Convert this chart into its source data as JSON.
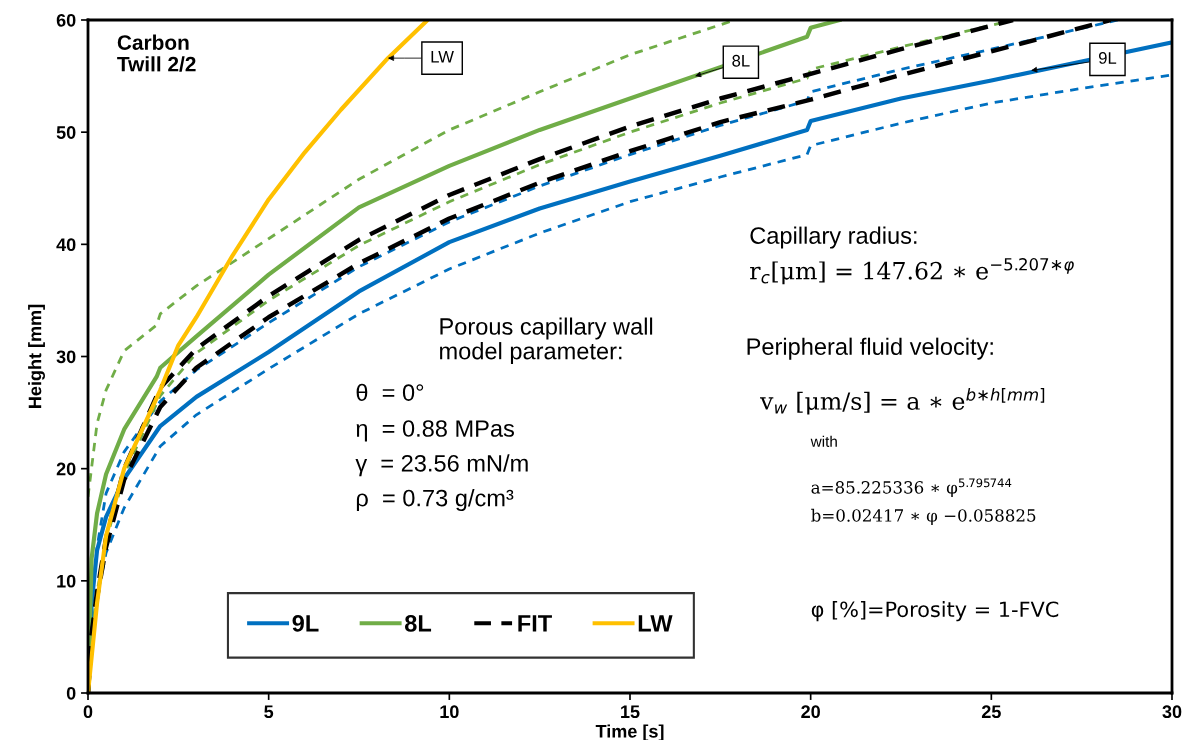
{
  "chart_data": {
    "type": "line",
    "xlabel": "Time [s]",
    "ylabel": "Height [mm]",
    "xlim": [
      0,
      30
    ],
    "xticks": [
      0,
      5,
      10,
      15,
      20,
      25,
      30
    ],
    "ylim": [
      0,
      60
    ],
    "yticks": [
      0,
      10,
      20,
      30,
      40,
      50,
      60
    ],
    "grid": false,
    "legend": "bottom",
    "marker": "none",
    "series": [
      {
        "color": "#0070c0",
        "line_style": "dashed",
        "x": [
          0,
          0.1,
          0.25,
          0.5,
          1,
          2,
          3,
          5,
          7.5,
          10,
          12.5,
          15,
          17.5,
          19.9,
          20,
          22.5,
          25,
          27.5,
          30
        ],
        "values": [
          0,
          5,
          8.5,
          12.5,
          16.5,
          22,
          24.8,
          28.9,
          33.8,
          37.8,
          41,
          43.8,
          46,
          48,
          48.8,
          50.8,
          52.6,
          53.9,
          55.1
        ]
      },
      {
        "color": "#0070c0",
        "line_style": "dashed",
        "x": [
          0,
          0.1,
          0.25,
          0.5,
          1,
          2,
          3,
          5,
          7.5,
          10,
          12.5,
          15,
          17.5,
          19.9,
          20,
          22.5,
          25,
          28.5
        ],
        "values": [
          0,
          8,
          13,
          17.8,
          21.5,
          26,
          28.8,
          33,
          38,
          42,
          45.2,
          48,
          50.6,
          52.8,
          53.6,
          55.6,
          57.4,
          60
        ]
      },
      {
        "color": "#70ad47",
        "line_style": "dashed",
        "x": [
          0,
          0.1,
          0.25,
          0.5,
          1,
          2,
          3,
          5,
          7.5,
          10,
          12.5,
          15,
          17.5,
          19.9,
          20,
          22.5,
          25.6
        ],
        "values": [
          0,
          5.2,
          9,
          13.5,
          19.5,
          26.5,
          30.3,
          35,
          39.9,
          43.8,
          47.1,
          50,
          52.6,
          54.8,
          55.6,
          57.6,
          60
        ]
      },
      {
        "color": "#70ad47",
        "line_style": "dashed",
        "x": [
          0,
          0.25,
          0.5,
          1,
          1.9,
          2,
          3,
          5,
          7.5,
          10,
          12.5,
          15,
          17.9
        ],
        "values": [
          17.5,
          24,
          27,
          30.5,
          32.8,
          33.8,
          36.3,
          40.5,
          45.8,
          50.2,
          53.6,
          56.9,
          60
        ]
      },
      {
        "name": "9L",
        "color": "#0070c0",
        "line_style": "solid",
        "x": [
          0,
          0.1,
          0.25,
          0.5,
          1,
          2,
          3,
          5,
          7.5,
          10,
          12.5,
          15,
          17.5,
          19.9,
          20,
          22.5,
          25,
          27.5,
          30
        ],
        "values": [
          0,
          8,
          12.7,
          15.7,
          19.1,
          23.8,
          26.4,
          30.4,
          35.8,
          40.2,
          43.2,
          45.6,
          47.9,
          50.2,
          51,
          53,
          54.6,
          56.3,
          58
        ]
      },
      {
        "name": "8L",
        "color": "#70ad47",
        "line_style": "solid",
        "x": [
          0,
          0.1,
          0.25,
          0.5,
          1,
          1.9,
          2,
          3,
          5,
          7.5,
          10,
          12.5,
          15,
          17.5,
          19.9,
          20,
          20.8
        ],
        "values": [
          0,
          12,
          16,
          19.5,
          23.5,
          28.2,
          29,
          31.8,
          37.3,
          43.3,
          47,
          50.2,
          53,
          55.8,
          58.5,
          59.3,
          60
        ]
      },
      {
        "name": "FIT",
        "color": "#000000",
        "line_style": "dashed",
        "x": [
          0,
          0.1,
          0.25,
          0.5,
          1,
          2,
          3,
          5,
          7.5,
          10,
          12.5,
          15,
          17.5,
          20,
          22.5,
          25.6
        ],
        "values": [
          0,
          5.3,
          9,
          13.8,
          20,
          27.2,
          30.7,
          35.4,
          40.4,
          44.4,
          47.6,
          50.5,
          53,
          55.2,
          57.4,
          60
        ]
      },
      {
        "color": "#000000",
        "line_style": "dashed",
        "x": [
          0,
          0.1,
          0.25,
          0.5,
          1,
          2,
          3,
          5,
          7.5,
          10,
          12.5,
          15,
          17.5,
          20,
          22.5,
          25,
          28.3
        ],
        "values": [
          0,
          5,
          8.5,
          13,
          19,
          25.5,
          29,
          33.5,
          38.3,
          42.3,
          45.5,
          48.3,
          50.9,
          52.9,
          55.1,
          57.2,
          60
        ]
      },
      {
        "name": "LW",
        "color": "#ffc000",
        "line_style": "solid",
        "x": [
          0,
          0.25,
          0.5,
          1,
          2,
          2.5,
          3,
          4,
          5,
          6,
          7,
          8.3,
          9.4
        ],
        "values": [
          0,
          8,
          14,
          20,
          27,
          31,
          33.5,
          39,
          44,
          48.2,
          52,
          56.6,
          60
        ]
      }
    ],
    "annotations": [
      "Carbon\nTwill 2/2",
      "Porous capillary wall\nmodel parameter:",
      "θ  = 0°",
      "η  = 0.88 MPas",
      "γ  = 23.56 mN/m",
      "ρ  = 0.73 g/cm³",
      "Capillary radius:",
      "r$_{c}$[μm] = 147.62 ∗ e$^{−5.207∗φ}$",
      "Peripheral fluid velocity:",
      "v$_{w}$ [μm/s] = a ∗ e$^{b∗h[mm]}$",
      "with",
      "a=85.225336 ∗ φ$^{5.795744}$",
      "b=0.02417 ∗ φ −0.058825",
      "φ [%]=Porosity = 1-FVC",
      {
        "text": "LW",
        "x": 8.3,
        "y": 56.6
      },
      {
        "text": "8L",
        "x": 16.8,
        "y": 55.0
      },
      {
        "text": "9L",
        "x": 26.1,
        "y": 55.5
      }
    ]
  }
}
